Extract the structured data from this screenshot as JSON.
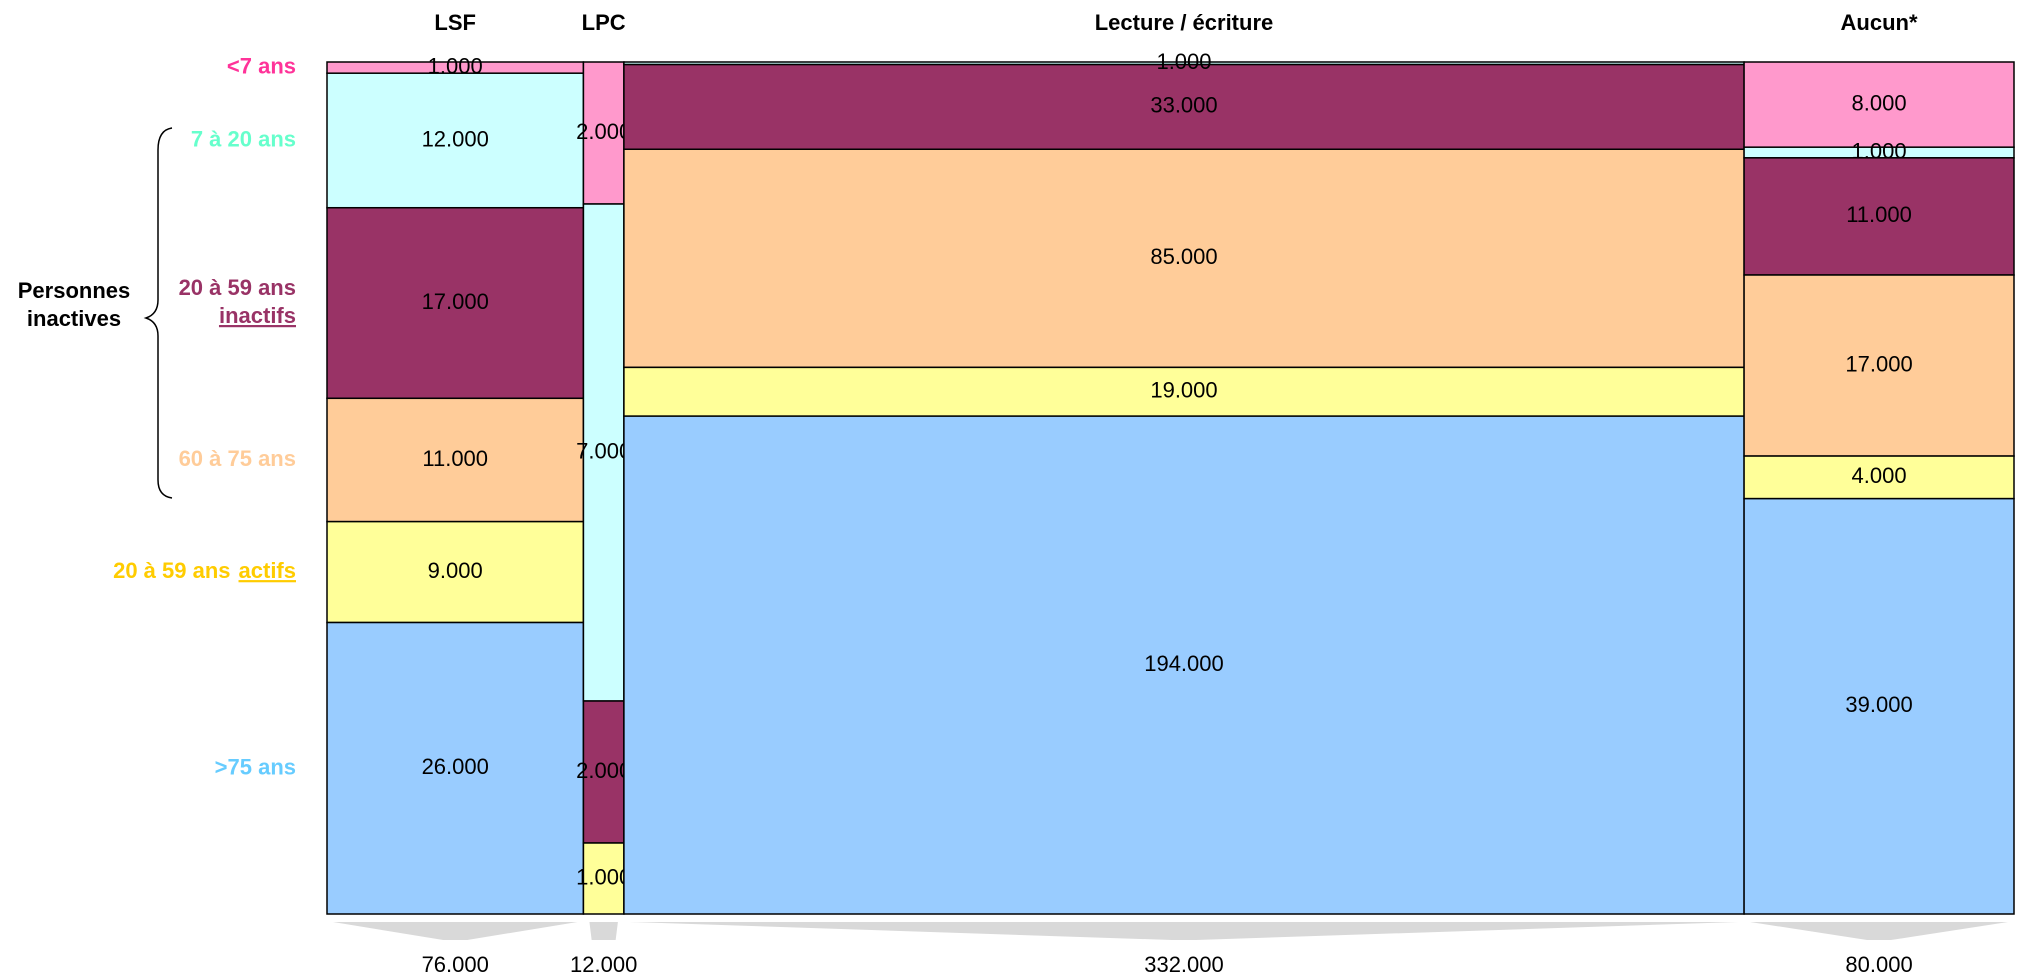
{
  "chart_data": {
    "type": "mosaic",
    "categories": [
      "LSF",
      "LPC",
      "Lecture / écriture",
      "Aucun*"
    ],
    "totals": [
      76000,
      12000,
      332000,
      80000
    ],
    "total_labels": [
      "76.000",
      "12.000",
      "332.000",
      "80.000"
    ],
    "series": [
      {
        "name": "<7 ans",
        "color": "#ff99cc",
        "label_color": "#ff3399",
        "values": [
          1000,
          2000,
          null,
          8000
        ],
        "value_labels": [
          "1.000",
          "2.000",
          null,
          "8.000"
        ]
      },
      {
        "name": "7 à 20 ans",
        "color": "#ccffff",
        "label_color": "#66ffcc",
        "values": [
          12000,
          7000,
          1000,
          1000
        ],
        "value_labels": [
          "12.000",
          "7.000",
          "1.000",
          "1.000"
        ]
      },
      {
        "name": "20 à 59 ans",
        "emphasis": "inactifs",
        "color": "#993366",
        "label_color": "#993366",
        "values": [
          17000,
          2000,
          33000,
          11000
        ],
        "value_labels": [
          "17.000",
          "2.000",
          "33.000",
          "11.000"
        ]
      },
      {
        "name": "60 à 75 ans",
        "color": "#ffcc99",
        "label_color": "#ffcc99",
        "values": [
          11000,
          null,
          85000,
          17000
        ],
        "value_labels": [
          "11.000",
          null,
          "85.000",
          "17.000"
        ]
      },
      {
        "name": "20 à 59 ans",
        "emphasis": "actifs",
        "color": "#ffff99",
        "label_color": "#ffcc00",
        "values": [
          9000,
          1000,
          19000,
          4000
        ],
        "value_labels": [
          "9.000",
          "1.000",
          "19.000",
          "4.000"
        ]
      },
      {
        "name": ">75 ans",
        "color": "#99ccff",
        "label_color": "#66ccff",
        "values": [
          26000,
          null,
          194000,
          39000
        ],
        "value_labels": [
          "26.000",
          null,
          "194.000",
          "39.000"
        ]
      }
    ],
    "annotation": [
      "Personnes",
      "inactives"
    ]
  }
}
